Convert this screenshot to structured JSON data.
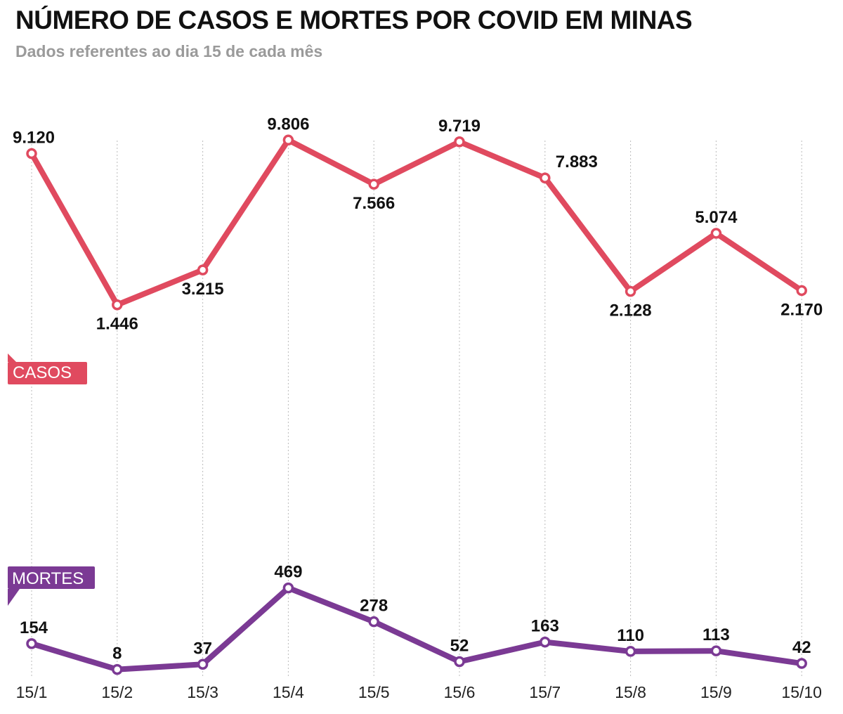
{
  "title": "NÚMERO DE CASOS E MORTES POR COVID EM MINAS",
  "subtitle": "Dados referentes ao dia 15 de cada mês",
  "colors": {
    "casos": "#e04a5f",
    "mortes": "#7b3a94",
    "grid": "#bbbbbb"
  },
  "chart_data": [
    {
      "type": "line",
      "categories": [
        "15/1",
        "15/2",
        "15/3",
        "15/4",
        "15/5",
        "15/6",
        "15/7",
        "15/8",
        "15/9",
        "15/10"
      ],
      "series": [
        {
          "name": "CASOS",
          "values": [
            9120,
            1446,
            3215,
            9806,
            7566,
            9719,
            7883,
            2128,
            5074,
            2170
          ],
          "labels": [
            "9.120",
            "1.446",
            "3.215",
            "9.806",
            "7.566",
            "9.719",
            "7.883",
            "2.128",
            "5.074",
            "2.170"
          ],
          "label_positions": [
            "above",
            "below",
            "below",
            "above",
            "below",
            "above",
            "above-right",
            "below",
            "above",
            "below"
          ]
        }
      ],
      "grid": "vertical dotted"
    },
    {
      "type": "line",
      "categories": [
        "15/1",
        "15/2",
        "15/3",
        "15/4",
        "15/5",
        "15/6",
        "15/7",
        "15/8",
        "15/9",
        "15/10"
      ],
      "series": [
        {
          "name": "MORTES",
          "values": [
            154,
            8,
            37,
            469,
            278,
            52,
            163,
            110,
            113,
            42
          ],
          "labels": [
            "154",
            "8",
            "37",
            "469",
            "278",
            "52",
            "163",
            "110",
            "113",
            "42"
          ],
          "label_positions": [
            "above",
            "above",
            "above",
            "above",
            "above",
            "above",
            "above",
            "above",
            "above",
            "above"
          ]
        }
      ],
      "grid": "vertical dotted"
    }
  ]
}
